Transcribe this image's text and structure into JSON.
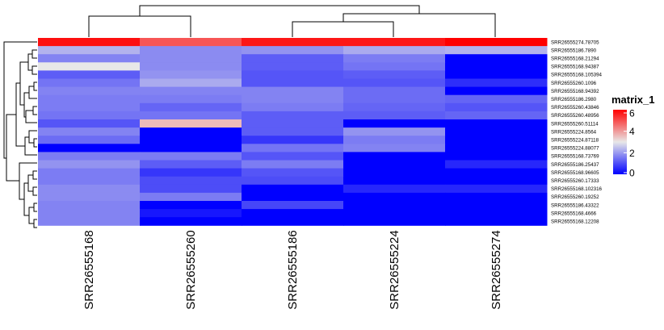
{
  "chart_data": {
    "type": "heatmap",
    "columns": [
      "SRR26555168",
      "SRR26555260",
      "SRR26555186",
      "SRR26555224",
      "SRR26555274"
    ],
    "rows": [
      "SRR26555274.78705",
      "SRR26555186.7890",
      "SRR26555168.21294",
      "SRR26555168.94387",
      "SRR26555168.105394",
      "SRR26555260.1096",
      "SRR26555168.94392",
      "SRR26555186.2980",
      "SRR26555260.43846",
      "SRR26555260.48956",
      "SRR26555260.51114",
      "SRR26555224.8564",
      "SRR26555224.87118",
      "SRR26555224.88077",
      "SRR26555168.73769",
      "SRR26555186.25437",
      "SRR26555168.96605",
      "SRR26555260.17333",
      "SRR26555168.102316",
      "SRR26555260.19252",
      "SRR26555186.43322",
      "SRR26555168.4666",
      "SRR26555168.12208"
    ],
    "values": [
      [
        5.8,
        4.9,
        5.7,
        5.7,
        6.0
      ],
      [
        2.3,
        1.8,
        1.9,
        2.2,
        2.3
      ],
      [
        1.7,
        1.8,
        1.2,
        1.6,
        0.0
      ],
      [
        3.0,
        1.8,
        1.2,
        1.5,
        0.0
      ],
      [
        1.2,
        1.9,
        1.1,
        1.2,
        0.0
      ],
      [
        1.5,
        2.2,
        1.1,
        1.1,
        0.6
      ],
      [
        1.7,
        1.7,
        1.7,
        1.4,
        0.0
      ],
      [
        1.6,
        1.6,
        1.7,
        1.4,
        1.3
      ],
      [
        1.6,
        1.3,
        1.6,
        1.3,
        1.1
      ],
      [
        1.5,
        1.5,
        1.2,
        1.2,
        1.3
      ],
      [
        1.1,
        3.6,
        1.2,
        0.0,
        0.0
      ],
      [
        1.7,
        0.0,
        1.2,
        1.9,
        0.0
      ],
      [
        1.4,
        0.0,
        0.7,
        1.6,
        0.0
      ],
      [
        0.0,
        0.0,
        1.5,
        1.7,
        0.0
      ],
      [
        1.6,
        1.6,
        1.1,
        0.0,
        0.0
      ],
      [
        1.9,
        1.2,
        1.6,
        0.0,
        0.5
      ],
      [
        1.6,
        0.7,
        1.1,
        0.0,
        0.0
      ],
      [
        1.6,
        1.0,
        1.0,
        0.0,
        0.0
      ],
      [
        1.8,
        1.0,
        0.0,
        0.5,
        0.5
      ],
      [
        1.8,
        1.6,
        0.0,
        0.0,
        0.0
      ],
      [
        1.7,
        0.0,
        0.9,
        0.0,
        0.0
      ],
      [
        1.7,
        0.3,
        0.0,
        0.0,
        0.0
      ],
      [
        1.7,
        0.0,
        0.0,
        0.0,
        0.0
      ]
    ],
    "color_scale": {
      "low": "#0000FF",
      "mid": "#E8E8E8",
      "high": "#FF0000",
      "domain": [
        0,
        3,
        6
      ]
    },
    "legend": {
      "title": "matrix_1",
      "ticks": [
        "0",
        "2",
        "4",
        "6"
      ],
      "position": "right"
    }
  }
}
